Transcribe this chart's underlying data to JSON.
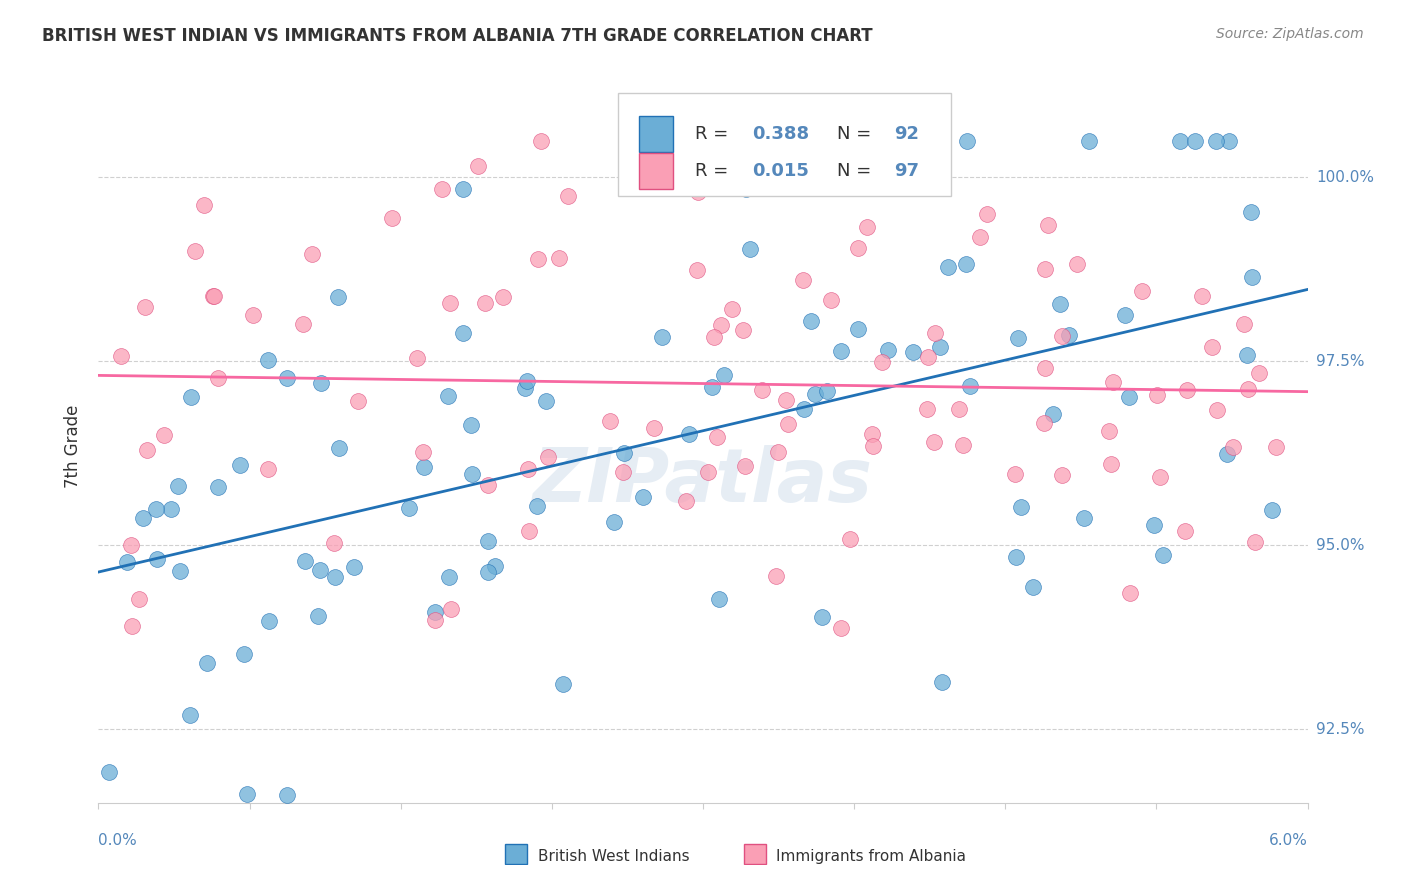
{
  "title": "BRITISH WEST INDIAN VS IMMIGRANTS FROM ALBANIA 7TH GRADE CORRELATION CHART",
  "source": "Source: ZipAtlas.com",
  "ylabel": "7th Grade",
  "xlim": [
    0.0,
    6.0
  ],
  "ylim": [
    91.5,
    101.2
  ],
  "blue_R": 0.388,
  "blue_N": 92,
  "pink_R": 0.015,
  "pink_N": 97,
  "blue_color": "#6baed6",
  "pink_color": "#fa9fb5",
  "blue_line_color": "#2171b5",
  "pink_line_color": "#f768a1",
  "pink_edge_color": "#e05080",
  "watermark": "ZIPatlas",
  "yticks": [
    92.5,
    95.0,
    97.5,
    100.0
  ],
  "legend_label_blue": "British West Indians",
  "legend_label_pink": "Immigrants from Albania",
  "tick_color": "#5588bb",
  "grid_color": "#d0d0d0",
  "title_color": "#333333",
  "source_color": "#888888"
}
